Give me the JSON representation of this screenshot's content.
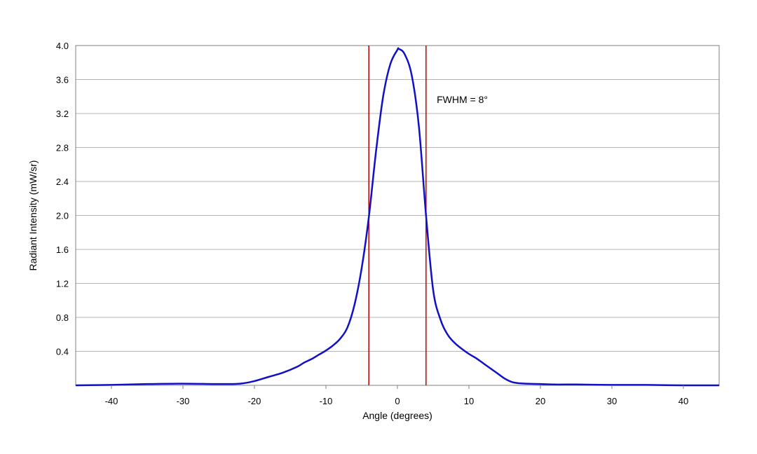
{
  "chart_data": {
    "type": "line",
    "title": "",
    "xlabel": "Angle (degrees)",
    "ylabel": "Radiant Intensity (mW/sr)",
    "xlim": [
      -45,
      45
    ],
    "ylim": [
      0,
      4.0
    ],
    "xticks": [
      -40,
      -30,
      -20,
      -10,
      0,
      10,
      20,
      30,
      40
    ],
    "yticks": [
      "0.4",
      "0.8",
      "1.2",
      "1.6",
      "2.0",
      "2.4",
      "2.8",
      "3.2",
      "3.6",
      "4.0"
    ],
    "grid": "horizontal",
    "legend": "none",
    "colors": {
      "line": "#1010c8",
      "markers": "#c00000",
      "grid": "#b4b4b4",
      "frame": "#808080"
    },
    "series": [
      {
        "x": [
          -45,
          -40,
          -35,
          -30,
          -25,
          -22,
          -20,
          -18,
          -16,
          -14,
          -13,
          -12,
          -11,
          -10,
          -9,
          -8,
          -7,
          -6,
          -5,
          -4,
          -3,
          -2,
          -1,
          0,
          0.2,
          1,
          2,
          3,
          4,
          5,
          6,
          7,
          8,
          9,
          10,
          11,
          12,
          13,
          14,
          15,
          16,
          17,
          18,
          20,
          22,
          25,
          30,
          35,
          40,
          45
        ],
        "y": [
          0.0,
          0.005,
          0.015,
          0.02,
          0.015,
          0.02,
          0.05,
          0.1,
          0.15,
          0.22,
          0.27,
          0.31,
          0.36,
          0.41,
          0.47,
          0.55,
          0.68,
          0.95,
          1.38,
          1.98,
          2.75,
          3.4,
          3.78,
          3.95,
          3.96,
          3.9,
          3.65,
          3.05,
          2.0,
          1.12,
          0.78,
          0.6,
          0.5,
          0.43,
          0.37,
          0.32,
          0.26,
          0.2,
          0.14,
          0.08,
          0.04,
          0.025,
          0.02,
          0.015,
          0.01,
          0.01,
          0.005,
          0.005,
          0.0,
          0.0
        ]
      }
    ],
    "markers": [
      -4,
      4
    ],
    "annotation": "FWHM = 8°"
  }
}
